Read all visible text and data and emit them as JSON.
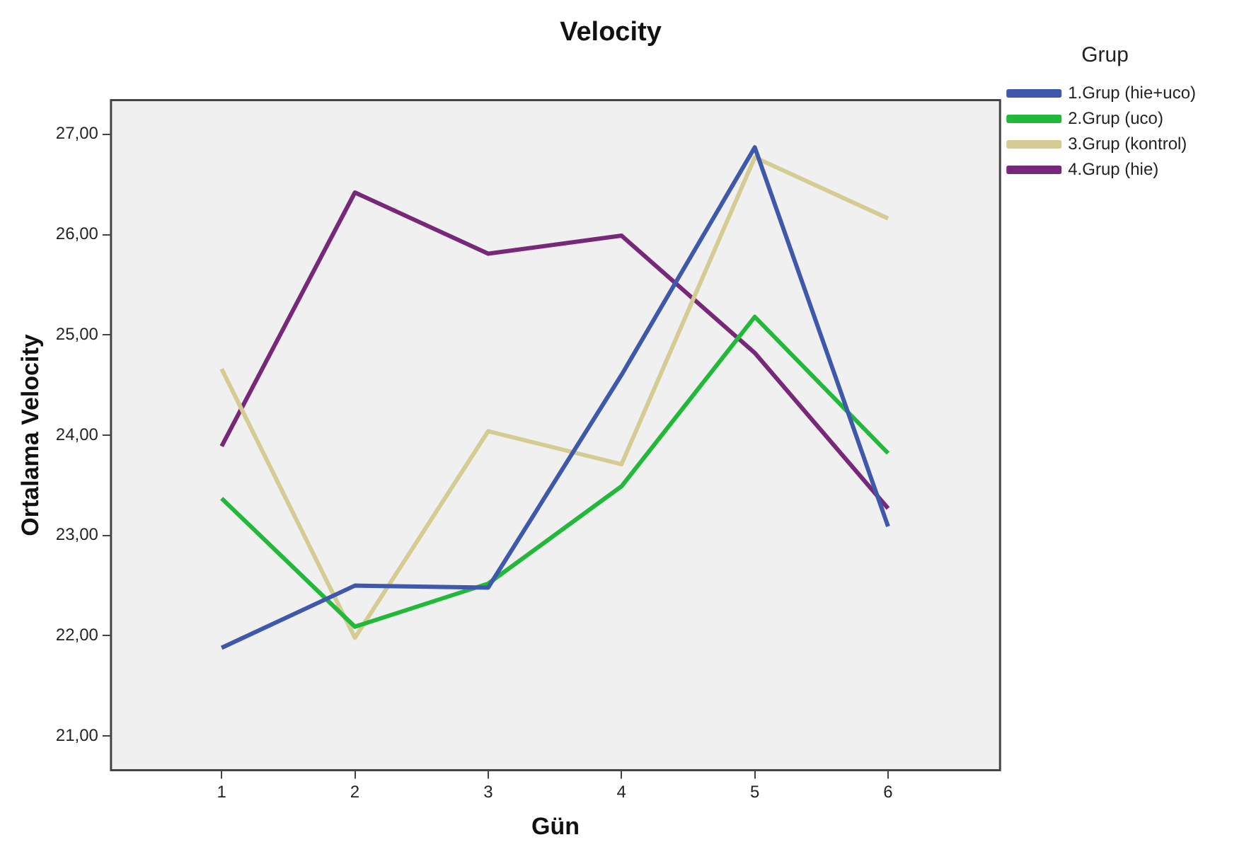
{
  "chart_data": {
    "type": "line",
    "title": "Velocity",
    "xlabel": "Gün",
    "ylabel": "Ortalama Velocity",
    "legend_title": "Grup",
    "legend": "right",
    "grid": false,
    "marker": "none",
    "line_style": "solid",
    "x": [
      1,
      2,
      3,
      4,
      5,
      6
    ],
    "xlim": [
      0.17,
      6.84
    ],
    "xticks": [
      1,
      2,
      3,
      4,
      5,
      6
    ],
    "ylim": [
      20.66,
      27.34
    ],
    "yticks": [
      {
        "value": 21,
        "label": "21,00"
      },
      {
        "value": 22,
        "label": "22,00"
      },
      {
        "value": 23,
        "label": "23,00"
      },
      {
        "value": 24,
        "label": "24,00"
      },
      {
        "value": 25,
        "label": "25,00"
      },
      {
        "value": 26,
        "label": "26,00"
      },
      {
        "value": 27,
        "label": "27,00"
      }
    ],
    "series": [
      {
        "name": "1.Grup (hie+uco)",
        "color": "#3e58ac",
        "values": [
          21.88,
          22.5,
          22.48,
          24.6,
          26.87,
          23.09
        ]
      },
      {
        "name": "2.Grup (uco)",
        "color": "#22b83a",
        "values": [
          23.37,
          22.09,
          22.52,
          23.49,
          25.18,
          23.82
        ]
      },
      {
        "name": "3.Grup (kontrol)",
        "color": "#d4cc92",
        "values": [
          24.66,
          21.98,
          24.04,
          23.71,
          26.77,
          26.16
        ]
      },
      {
        "name": "4.Grup (hie)",
        "color": "#782878",
        "values": [
          23.89,
          26.42,
          25.81,
          25.99,
          24.82,
          23.27
        ]
      }
    ]
  }
}
